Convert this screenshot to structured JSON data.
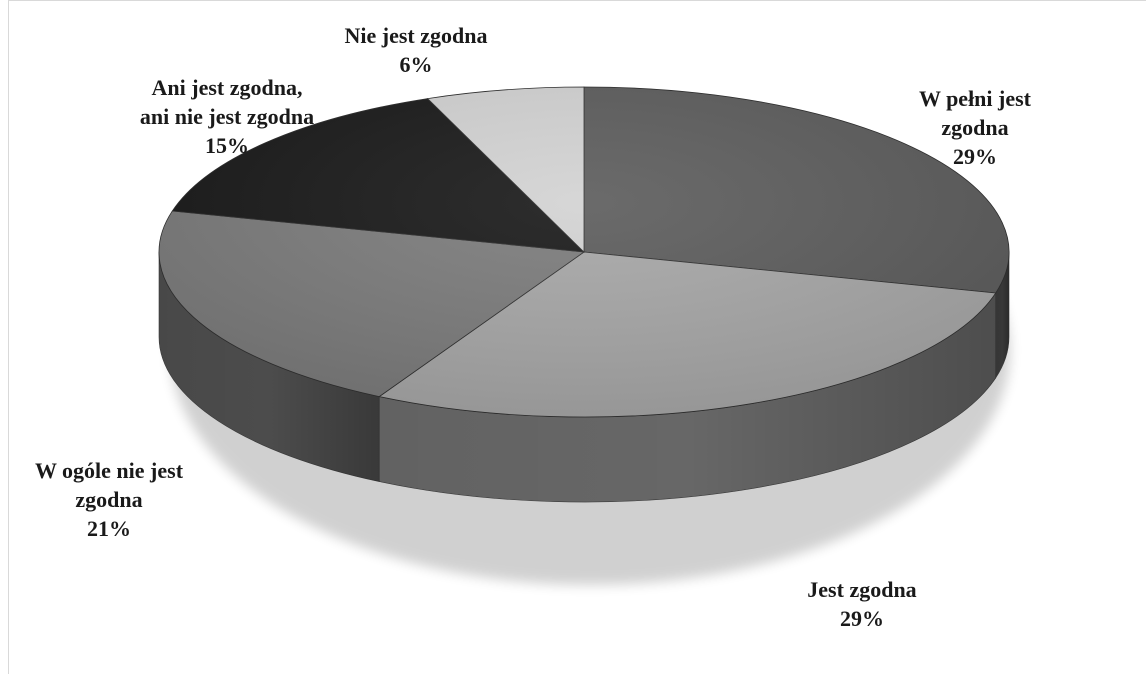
{
  "chart_data": {
    "type": "pie",
    "title": "",
    "slices": [
      {
        "label_lines": [
          "W pełni jest",
          "zgodna"
        ],
        "value_label": "29%",
        "value": 29,
        "color": "#5a5a5a"
      },
      {
        "label_lines": [
          "Jest zgodna"
        ],
        "value_label": "29%",
        "value": 29,
        "color": "#a6a6a6"
      },
      {
        "label_lines": [
          "W ogóle nie jest",
          "zgodna"
        ],
        "value_label": "21%",
        "value": 21,
        "color": "#7a7a7a"
      },
      {
        "label_lines": [
          "Ani jest zgodna,",
          "ani nie jest zgodna"
        ],
        "value_label": "15%",
        "value": 15,
        "color": "#161616"
      },
      {
        "label_lines": [
          "Nie jest zgodna"
        ],
        "value_label": "6%",
        "value": 6,
        "color": "#d2d2d2"
      }
    ],
    "legend": "none",
    "style": "3d-pie"
  }
}
